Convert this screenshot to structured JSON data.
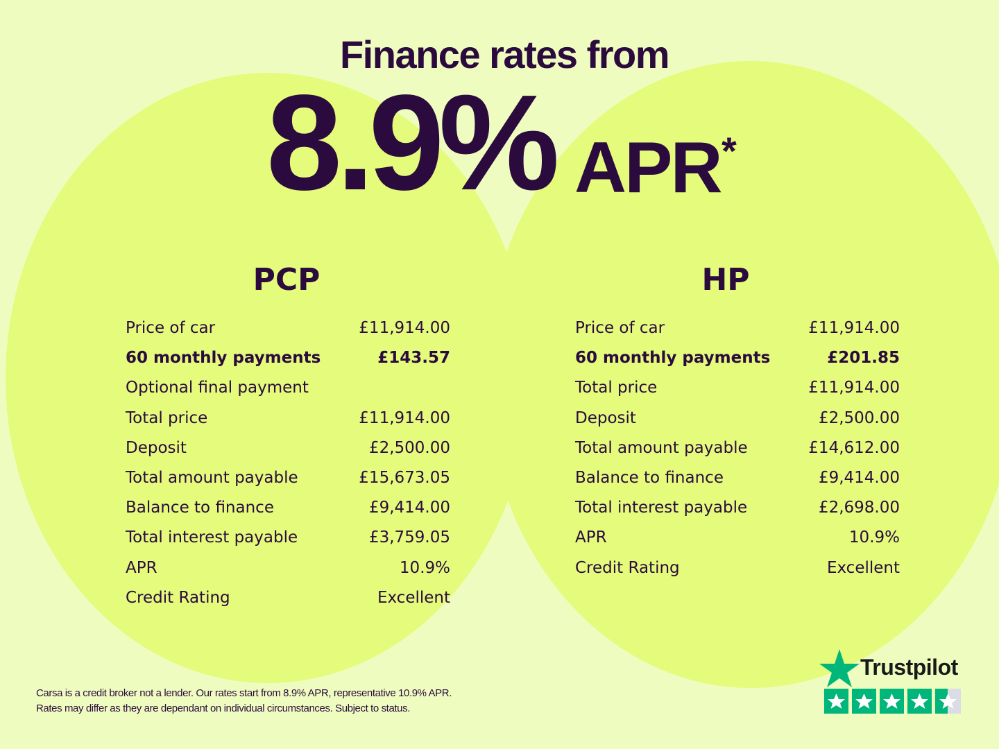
{
  "header": {
    "title": "Finance rates from",
    "rate": "8.9%",
    "rate_suffix": "APR",
    "asterisk": "*"
  },
  "pcp": {
    "title": "PCP",
    "rows": [
      {
        "label": "Price of car",
        "value": "£11,914.00"
      },
      {
        "label": "60 monthly payments",
        "value": "£143.57"
      },
      {
        "label": "Optional final payment"
      },
      {
        "label": "Total price",
        "value": "£11,914.00"
      },
      {
        "label": "Deposit",
        "value": "£2,500.00"
      },
      {
        "label": "Total amount payable",
        "value": "£15,673.05"
      },
      {
        "label": "Balance to finance",
        "value": "£9,414.00"
      },
      {
        "label": "Total interest payable",
        "value": "£3,759.05"
      },
      {
        "label": "APR",
        "value": "10.9%"
      },
      {
        "label": "Credit Rating",
        "value": "Excellent"
      }
    ]
  },
  "hp": {
    "title": "HP",
    "rows": [
      {
        "label": "Price of car",
        "value": "£11,914.00"
      },
      {
        "label": "60 monthly payments",
        "value": "£201.85"
      },
      {
        "label": "Total price",
        "value": "£11,914.00"
      },
      {
        "label": "Deposit",
        "value": "£2,500.00"
      },
      {
        "label": "Total amount payable",
        "value": "£14,612.00"
      },
      {
        "label": "Balance to finance",
        "value": "£9,414.00"
      },
      {
        "label": "Total interest payable",
        "value": "£2,698.00"
      },
      {
        "label": "APR",
        "value": "10.9%"
      },
      {
        "label": "Credit Rating",
        "value": "Excellent"
      }
    ]
  },
  "footnote": [
    "Carsa is a credit broker not a lender. Our rates start from 8.9% APR, representative 10.9% APR.",
    "Rates may differ as they are dependant on individual circumstances. Subject to status."
  ],
  "trustpilot": {
    "label": "Trustpilot"
  }
}
